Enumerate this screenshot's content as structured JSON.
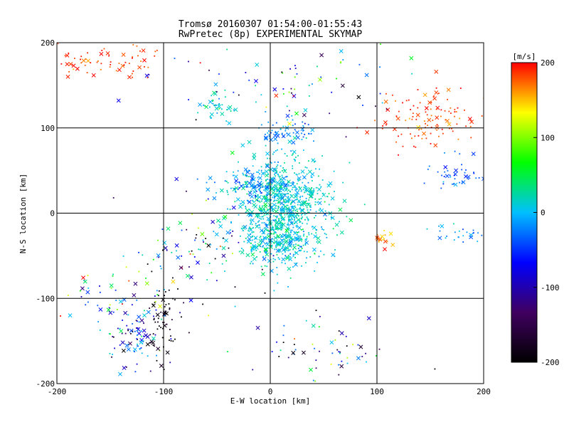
{
  "chart_data": {
    "type": "scatter",
    "title": "Tromsø 20160307 01:54:00-01:55:43",
    "subtitle": "RwPretec (8p) EXPERIMENTAL SKYMAP",
    "xlabel": "E-W location [km]",
    "ylabel": "N-S location [km]",
    "xlim": [
      -200,
      200
    ],
    "ylim": [
      -200,
      200
    ],
    "xticks": [
      -200,
      -100,
      0,
      100,
      200
    ],
    "yticks": [
      -200,
      -100,
      0,
      100,
      200
    ],
    "grid": true,
    "colorbar": {
      "title": "[m/s]",
      "range": [
        -200,
        200
      ],
      "ticks": [
        200,
        100,
        0,
        -100,
        -200
      ],
      "colormap": [
        "#000000",
        "#400060",
        "#0000ff",
        "#00c0ff",
        "#00ff00",
        "#ffff00",
        "#ff0000"
      ]
    },
    "marker_legend": {
      "small": "dot",
      "large": "x"
    },
    "clusters": [
      {
        "x": 10,
        "y": 5,
        "sx": 22,
        "sy": 30,
        "n": 900,
        "v": 10,
        "sv": 18
      },
      {
        "x": 12,
        "y": 97,
        "sx": 14,
        "sy": 7,
        "n": 60,
        "v": -20,
        "sv": 15
      },
      {
        "x": -50,
        "y": 125,
        "sx": 8,
        "sy": 8,
        "n": 40,
        "v": 15,
        "sv": 20
      },
      {
        "x": -15,
        "y": 35,
        "sx": 18,
        "sy": 8,
        "n": 80,
        "v": -25,
        "sv": 20
      },
      {
        "x": 10,
        "y": -40,
        "sx": 18,
        "sy": 12,
        "n": 120,
        "v": 10,
        "sv": 20
      },
      {
        "x": 150,
        "y": 115,
        "sx": 28,
        "sy": 18,
        "n": 120,
        "v": 185,
        "sv": 15
      },
      {
        "x": -150,
        "y": 180,
        "sx": 28,
        "sy": 12,
        "n": 70,
        "v": 185,
        "sv": 15
      },
      {
        "x": 175,
        "y": 45,
        "sx": 14,
        "sy": 10,
        "n": 45,
        "v": -35,
        "sv": 15
      },
      {
        "x": 175,
        "y": -25,
        "sx": 15,
        "sy": 6,
        "n": 25,
        "v": -15,
        "sv": 15
      },
      {
        "x": 105,
        "y": -30,
        "sx": 6,
        "sy": 6,
        "n": 18,
        "v": 170,
        "sv": 25
      },
      {
        "x": -125,
        "y": -140,
        "sx": 15,
        "sy": 20,
        "n": 90,
        "v": -60,
        "sv": 60
      },
      {
        "x": -100,
        "y": -125,
        "sx": 10,
        "sy": 25,
        "n": 60,
        "v": -185,
        "sv": 15
      },
      {
        "x": -65,
        "y": -45,
        "sx": 30,
        "sy": 30,
        "n": 90,
        "v": -60,
        "sv": 110
      },
      {
        "x": 50,
        "y": -160,
        "sx": 30,
        "sy": 20,
        "n": 60,
        "v": -40,
        "sv": 110
      },
      {
        "x": 30,
        "y": 150,
        "sx": 60,
        "sy": 30,
        "n": 80,
        "v": -30,
        "sv": 110
      },
      {
        "x": -140,
        "y": -100,
        "sx": 30,
        "sy": 15,
        "n": 50,
        "v": 20,
        "sv": 90
      }
    ]
  }
}
